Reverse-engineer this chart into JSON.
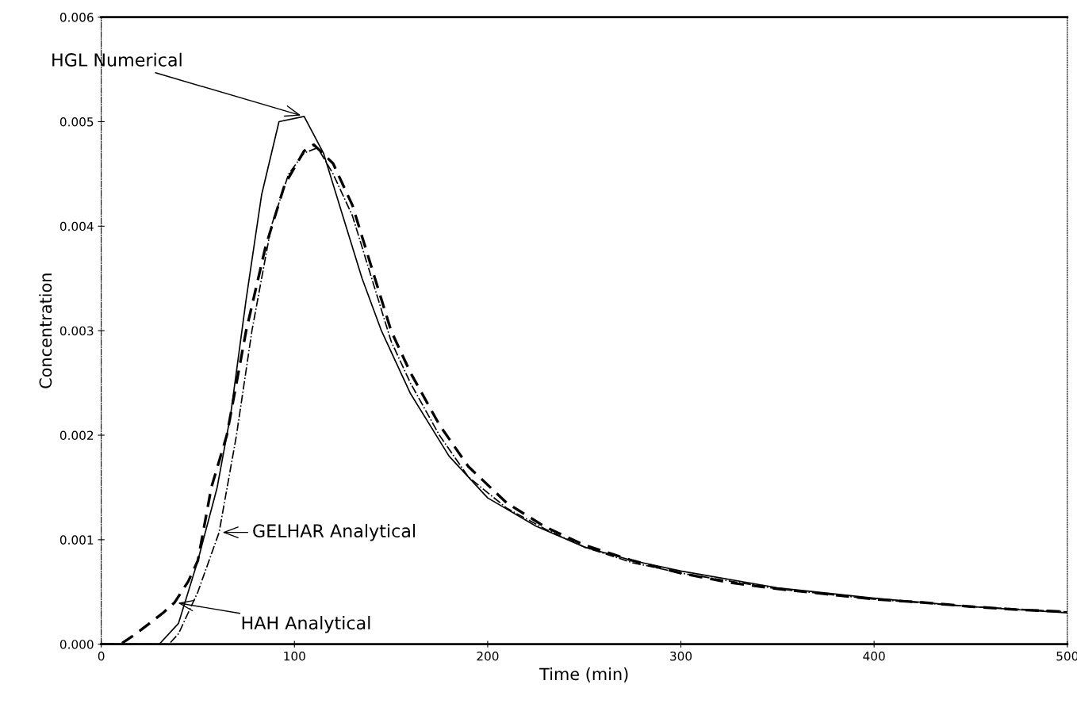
{
  "chart_data": {
    "type": "line",
    "xlabel": "Time (min)",
    "ylabel": "Concentration",
    "xlim": [
      0,
      500
    ],
    "xticks": [
      0,
      100,
      200,
      300,
      400,
      500
    ],
    "ylim": [
      0,
      0.006
    ],
    "yticks": [
      {
        "value": 0,
        "label": "0.000"
      },
      {
        "value": 0.001,
        "label": "0.001"
      },
      {
        "value": 0.002,
        "label": "0.002"
      },
      {
        "value": 0.003,
        "label": "0.003"
      },
      {
        "value": 0.004,
        "label": "0.004"
      },
      {
        "value": 0.005,
        "label": "0.005"
      },
      {
        "value": 0.006,
        "label": "0.006"
      }
    ],
    "grid": false,
    "legend": false,
    "series": [
      {
        "color": "#000000",
        "line_style": "solid",
        "marker": "none",
        "x": [
          0,
          20,
          30,
          40,
          50,
          60,
          67,
          75,
          83,
          92,
          105,
          115,
          125,
          135,
          145,
          160,
          180,
          200,
          225,
          250,
          275,
          300,
          350,
          400,
          450,
          500
        ],
        "values": [
          0,
          0,
          0,
          0.0002,
          0.0008,
          0.0015,
          0.0022,
          0.0033,
          0.0043,
          0.005,
          0.00505,
          0.0047,
          0.0041,
          0.0035,
          0.003,
          0.0024,
          0.0018,
          0.0014,
          0.00113,
          0.00093,
          0.0008,
          0.0007,
          0.00054,
          0.00044,
          0.00036,
          0.0003
        ]
      },
      {
        "color": "#000000",
        "line_style": "dashed",
        "marker": "none",
        "x": [
          0,
          10,
          18,
          25,
          32,
          38,
          45,
          50,
          57,
          65,
          75,
          85,
          95,
          105,
          110,
          120,
          130,
          140,
          150,
          160,
          175,
          190,
          210,
          230,
          250,
          275,
          300,
          325,
          350,
          375,
          400,
          425,
          450,
          475,
          500
        ],
        "values": [
          0,
          0,
          0.0001,
          0.0002,
          0.0003,
          0.0004,
          0.0006,
          0.0008,
          0.0015,
          0.002,
          0.003,
          0.0038,
          0.0044,
          0.00472,
          0.00478,
          0.0046,
          0.0042,
          0.0036,
          0.003,
          0.0026,
          0.0021,
          0.0017,
          0.00135,
          0.00112,
          0.00095,
          0.0008,
          0.00068,
          0.00059,
          0.00053,
          0.00048,
          0.00043,
          0.0004,
          0.00036,
          0.00033,
          0.00031
        ]
      },
      {
        "color": "#000000",
        "line_style": "dashdot",
        "marker": "none",
        "x": [
          0,
          20,
          35,
          40,
          50,
          61,
          70,
          78,
          88,
          97,
          105,
          112,
          120,
          130,
          140,
          150,
          160,
          175,
          190,
          210,
          230,
          250,
          275,
          300,
          350,
          400,
          450,
          500
        ],
        "values": [
          0,
          0,
          0,
          0.0001,
          0.0005,
          0.00107,
          0.002,
          0.003,
          0.004,
          0.0045,
          0.0047,
          0.00475,
          0.0045,
          0.0041,
          0.0035,
          0.0029,
          0.0025,
          0.002,
          0.0016,
          0.0013,
          0.0011,
          0.00093,
          0.00078,
          0.00068,
          0.00053,
          0.00043,
          0.00036,
          0.00031
        ]
      }
    ],
    "annotations": [
      {
        "text": "HGL Numerical",
        "x": 105,
        "y": 0.00505
      },
      {
        "text": "GELHAR Analytical",
        "x": 61,
        "y": 0.00107
      },
      {
        "text": "HAH Analytical",
        "x": 38,
        "y": 0.0004
      }
    ]
  }
}
